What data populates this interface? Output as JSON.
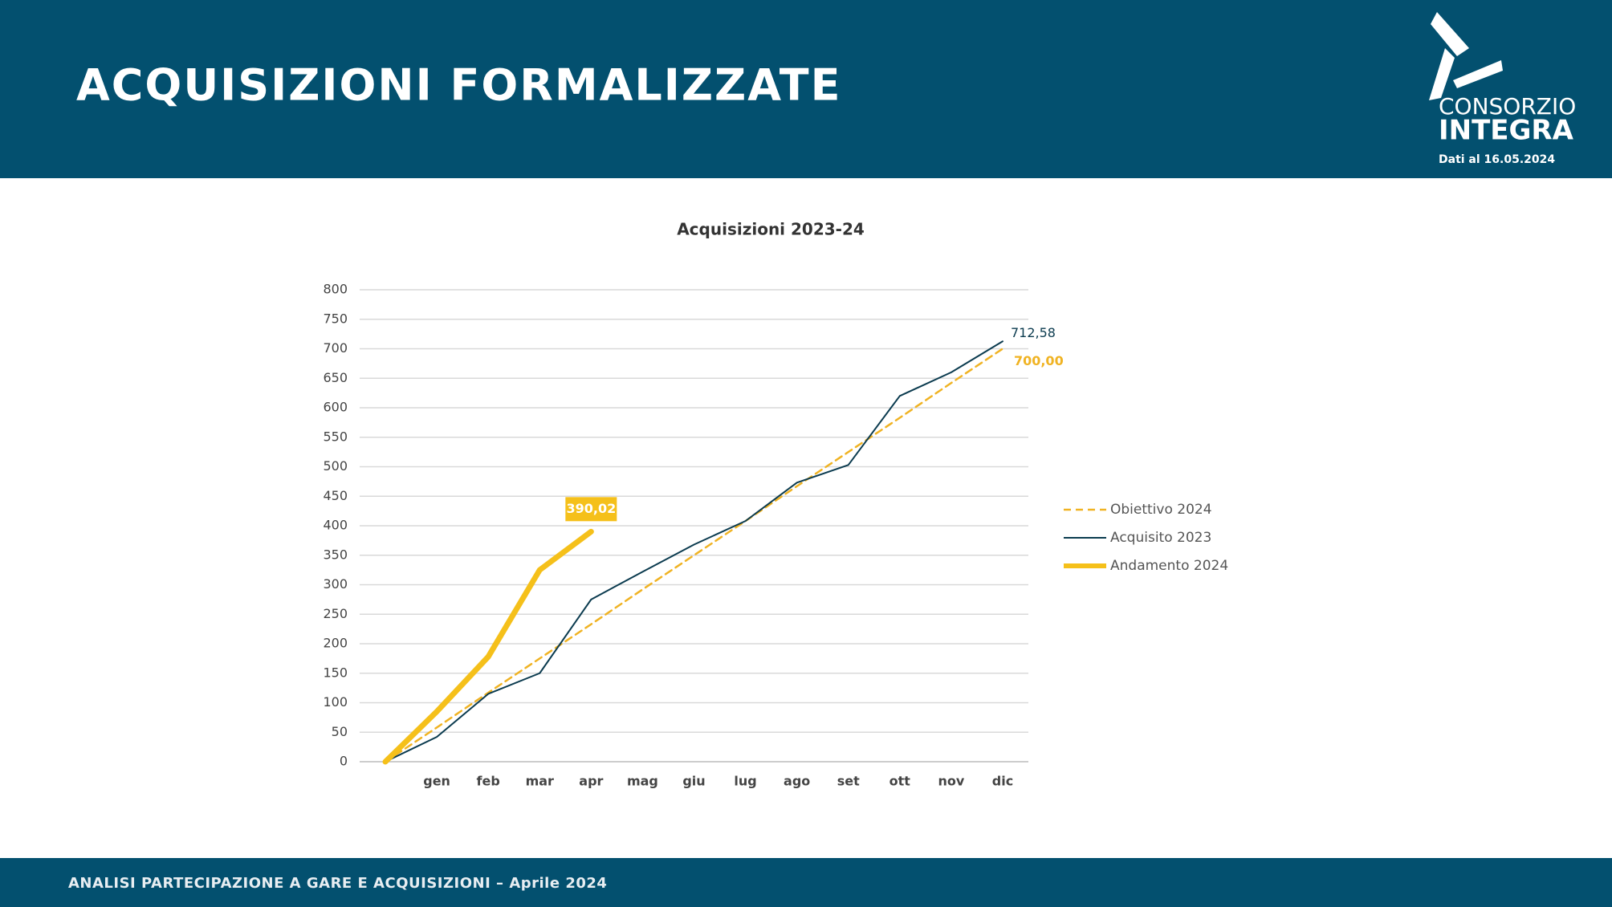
{
  "header": {
    "title": "ACQUISIZIONI FORMALIZZATE",
    "logo_top": "CONSORZIO",
    "logo_bottom": "INTEGRA",
    "date_note": "Dati al 16.05.2024"
  },
  "footer": {
    "text": "ANALISI PARTECIPAZIONE A GARE E ACQUISIZIONI – Aprile 2024"
  },
  "chart_data": {
    "type": "line",
    "title": "Acquisizioni 2023-24",
    "categories": [
      null,
      "gen",
      "feb",
      "mar",
      "apr",
      "mag",
      "giu",
      "lug",
      "ago",
      "set",
      "ott",
      "nov",
      "dic"
    ],
    "series": [
      {
        "name": "Obiettivo 2024",
        "color": "#f0b323",
        "line_style": "dashed",
        "line_width": 2.5,
        "values": [
          0,
          58,
          117,
          175,
          233,
          292,
          350,
          408,
          467,
          525,
          583,
          642,
          700
        ],
        "value_labels": [
          null,
          null,
          null,
          null,
          null,
          null,
          null,
          null,
          null,
          null,
          null,
          null,
          "700,00"
        ]
      },
      {
        "name": "Acquisito 2023",
        "color": "#0b3b4f",
        "line_style": "solid",
        "line_width": 2,
        "values": [
          0,
          42,
          115,
          150,
          275,
          322,
          368,
          408,
          473,
          503,
          620,
          660,
          712.58
        ],
        "value_labels": [
          null,
          null,
          null,
          null,
          null,
          null,
          null,
          null,
          null,
          null,
          null,
          null,
          "712,58"
        ]
      },
      {
        "name": "Andamento 2024",
        "color": "#f5c01a",
        "line_style": "solid",
        "line_width": 7,
        "label_style": "box",
        "values": [
          0,
          85,
          178,
          325,
          390.02,
          null,
          null,
          null,
          null,
          null,
          null,
          null,
          null
        ],
        "value_labels": [
          null,
          null,
          null,
          null,
          "390,02",
          null,
          null,
          null,
          null,
          null,
          null,
          null,
          null
        ]
      }
    ],
    "ylim": [
      0,
      800
    ],
    "yticks": [
      0,
      50,
      100,
      150,
      200,
      250,
      300,
      350,
      400,
      450,
      500,
      550,
      600,
      650,
      700,
      750,
      800
    ],
    "grid": true,
    "legend": "right"
  }
}
